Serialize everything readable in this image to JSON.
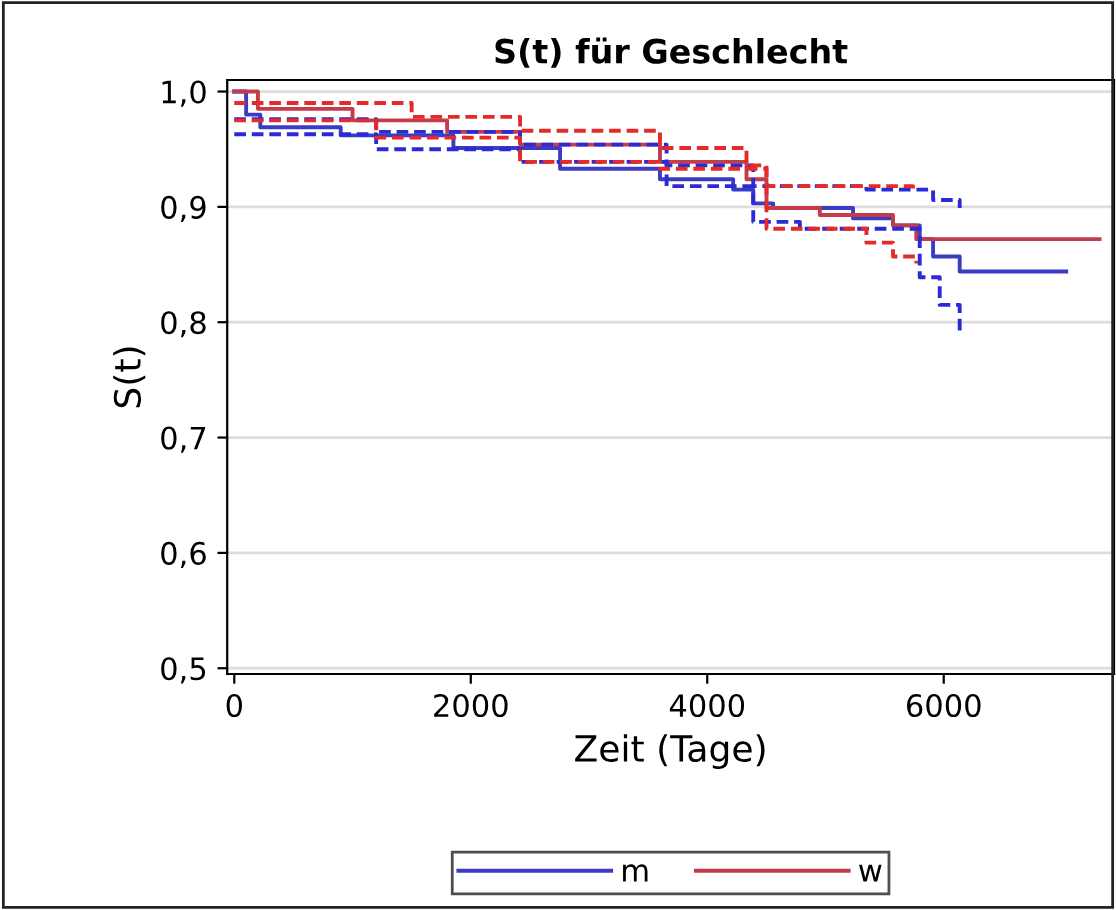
{
  "chart_data": {
    "type": "step",
    "title": "S(t) für Geschlecht",
    "xlabel": "Zeit (Tage)",
    "ylabel": "S(t)",
    "xlim": [
      -60,
      7440
    ],
    "xticks": [
      0,
      2000,
      4000,
      6000
    ],
    "ylim": [
      0.495,
      1.01
    ],
    "yticks": [
      {
        "value": 0.5,
        "label": "0,5"
      },
      {
        "value": 0.6,
        "label": "0,6"
      },
      {
        "value": 0.7,
        "label": "0,7"
      },
      {
        "value": 0.8,
        "label": "0,8"
      },
      {
        "value": 0.9,
        "label": "0,9"
      },
      {
        "value": 1.0,
        "label": "1,0"
      }
    ],
    "grid": "y",
    "legend": "bottom",
    "marker": "none",
    "series": [
      {
        "name": "m",
        "color": "#3b3bc4",
        "line_style": "solid",
        "x": [
          0,
          100,
          220,
          900,
          1853,
          2755,
          3600,
          4219,
          4389,
          4557,
          5233,
          5571,
          5797,
          5910,
          6135,
          7036
        ],
        "values": [
          1.0,
          0.98,
          0.969,
          0.962,
          0.951,
          0.933,
          0.924,
          0.915,
          0.903,
          0.899,
          0.89,
          0.884,
          0.872,
          0.857,
          0.844,
          0.844
        ]
      },
      {
        "name": "w",
        "color": "#c43b4b",
        "line_style": "solid",
        "x": [
          0,
          200,
          1000,
          1800,
          2417,
          3600,
          4332,
          4501,
          4952,
          5571,
          5768,
          7318
        ],
        "values": [
          1.0,
          0.985,
          0.975,
          0.965,
          0.954,
          0.939,
          0.924,
          0.899,
          0.893,
          0.884,
          0.872,
          0.872
        ]
      },
      {
        "color": "#2a2ad8",
        "line_style": "dashed",
        "x": [
          0,
          1200,
          2417,
          3656,
          4389,
          5346,
          5910,
          6135
        ],
        "values": [
          0.976,
          0.965,
          0.954,
          0.936,
          0.918,
          0.915,
          0.906,
          0.899
        ]
      },
      {
        "color": "#2a2ad8",
        "line_style": "dashed",
        "x": [
          0,
          1200,
          2417,
          3656,
          4389,
          4783,
          5346,
          5797,
          5966,
          6135
        ],
        "values": [
          0.963,
          0.95,
          0.939,
          0.918,
          0.887,
          0.881,
          0.881,
          0.839,
          0.815,
          0.791
        ]
      },
      {
        "color": "#e52a2a",
        "line_style": "dashed",
        "x": [
          0,
          1500,
          2417,
          3600,
          4332,
          4501,
          5740
        ],
        "values": [
          0.99,
          0.978,
          0.966,
          0.951,
          0.936,
          0.918,
          0.912
        ]
      },
      {
        "color": "#e52a2a",
        "line_style": "dashed",
        "x": [
          0,
          1200,
          2417,
          3600,
          4501,
          5346,
          5571,
          5768
        ],
        "values": [
          0.975,
          0.96,
          0.939,
          0.933,
          0.881,
          0.869,
          0.857,
          0.851
        ]
      }
    ]
  }
}
